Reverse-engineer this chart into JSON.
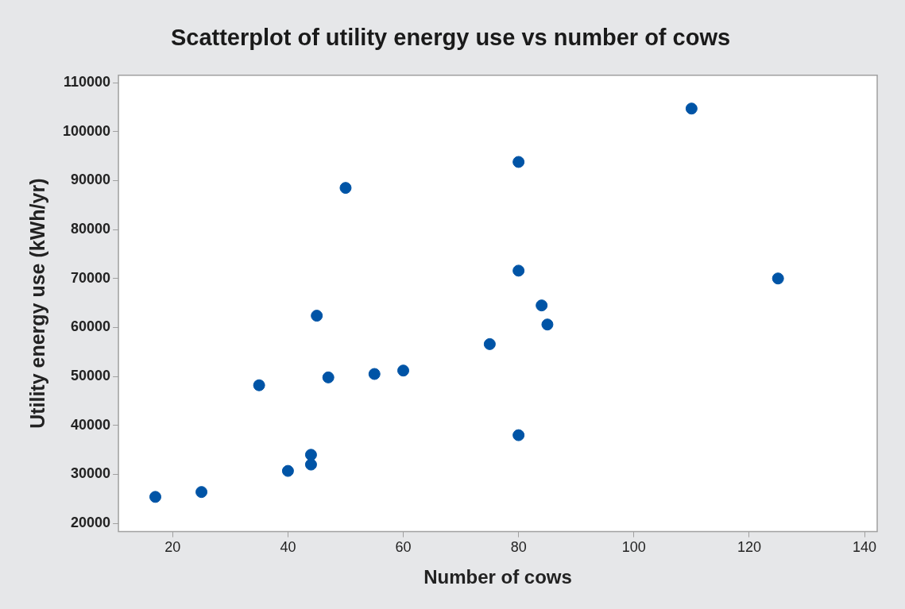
{
  "chart_data": {
    "type": "scatter",
    "title": "Scatterplot of utility energy use vs number of cows",
    "xlabel": "Number of cows",
    "ylabel": "Utility energy use (kWh/yr)",
    "x": [
      17,
      25,
      40,
      44,
      44,
      35,
      47,
      55,
      60,
      45,
      50,
      80,
      110,
      80,
      125,
      84,
      85,
      75,
      80
    ],
    "values": [
      25400,
      26400,
      30700,
      32000,
      34000,
      48200,
      49800,
      50500,
      51200,
      62400,
      88500,
      93800,
      104700,
      71600,
      70000,
      64500,
      60600,
      56600,
      38000
    ],
    "color": "#0054a6",
    "marker": "circle",
    "legend": false,
    "xlim": [
      10.6,
      142.2
    ],
    "xticks": [
      20,
      40,
      60,
      80,
      100,
      120,
      140
    ],
    "ylim": [
      18300,
      111500
    ],
    "yticks": [
      20000,
      30000,
      40000,
      50000,
      60000,
      70000,
      80000,
      90000,
      100000,
      110000
    ]
  }
}
